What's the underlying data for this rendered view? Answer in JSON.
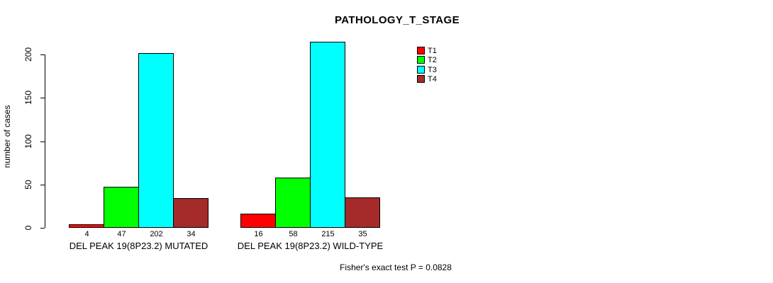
{
  "chart_data": {
    "type": "bar",
    "title": "PATHOLOGY_T_STAGE",
    "xlabel": "",
    "ylabel": "number of cases",
    "categories": [
      "DEL PEAK 19(8P23.2) MUTATED",
      "DEL PEAK 19(8P23.2) WILD-TYPE"
    ],
    "series": [
      {
        "name": "T1",
        "color": "#FF0000",
        "values": [
          4,
          16
        ]
      },
      {
        "name": "T2",
        "color": "#00FF00",
        "values": [
          47,
          58
        ]
      },
      {
        "name": "T3",
        "color": "#00FFFF",
        "values": [
          202,
          215
        ]
      },
      {
        "name": "T4",
        "color": "#A52A2A",
        "values": [
          34,
          35
        ]
      }
    ],
    "bar_value_labels": [
      [
        4,
        47,
        202,
        34
      ],
      [
        16,
        58,
        215,
        35
      ]
    ],
    "yticks": [
      0,
      50,
      100,
      150,
      200
    ],
    "ylim": [
      0,
      220
    ],
    "grid": false,
    "legend_position": "top-right",
    "background_color": "#FFFFFF",
    "axis_color": "#000000",
    "annotation": "Fisher's exact test P = 0.0828"
  }
}
